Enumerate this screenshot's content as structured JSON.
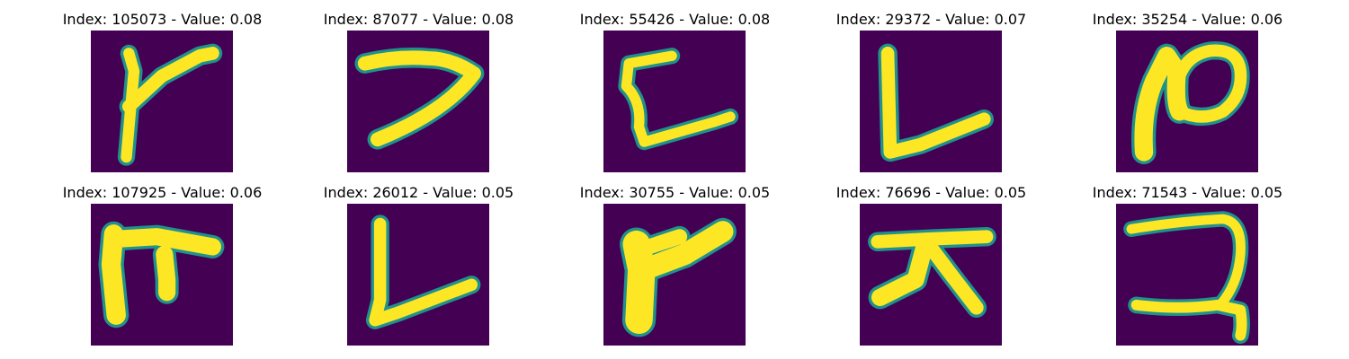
{
  "colors": {
    "background": "#440154",
    "stroke_core": "#fde725",
    "stroke_edge": "#21918c"
  },
  "chart_data": {
    "type": "image_grid",
    "rows": 2,
    "cols": 5,
    "colormap": "viridis",
    "panels": [
      {
        "title": "Index: 105073 - Value: 0.08",
        "index": 105073,
        "value": 0.08,
        "glyph": "k-shape"
      },
      {
        "title": "Index: 87077 - Value: 0.08",
        "index": 87077,
        "value": 0.08,
        "glyph": "7-shape"
      },
      {
        "title": "Index: 55426 - Value: 0.08",
        "index": 55426,
        "value": 0.08,
        "glyph": "c-bracket"
      },
      {
        "title": "Index: 29372 - Value: 0.07",
        "index": 29372,
        "value": 0.07,
        "glyph": "L-shape"
      },
      {
        "title": "Index: 35254 - Value: 0.06",
        "index": 35254,
        "value": 0.06,
        "glyph": "loop-n"
      },
      {
        "title": "Index: 107925 - Value: 0.06",
        "index": 107925,
        "value": 0.06,
        "glyph": "pi-shape"
      },
      {
        "title": "Index: 26012 - Value: 0.05",
        "index": 26012,
        "value": 0.05,
        "glyph": "L-shape-2"
      },
      {
        "title": "Index: 30755 - Value: 0.05",
        "index": 30755,
        "value": 0.05,
        "glyph": "thick-y"
      },
      {
        "title": "Index: 76696 - Value: 0.05",
        "index": 76696,
        "value": 0.05,
        "glyph": "x-shape"
      },
      {
        "title": "Index: 71543 - Value: 0.05",
        "index": 71543,
        "value": 0.05,
        "glyph": "z-curl"
      }
    ]
  }
}
